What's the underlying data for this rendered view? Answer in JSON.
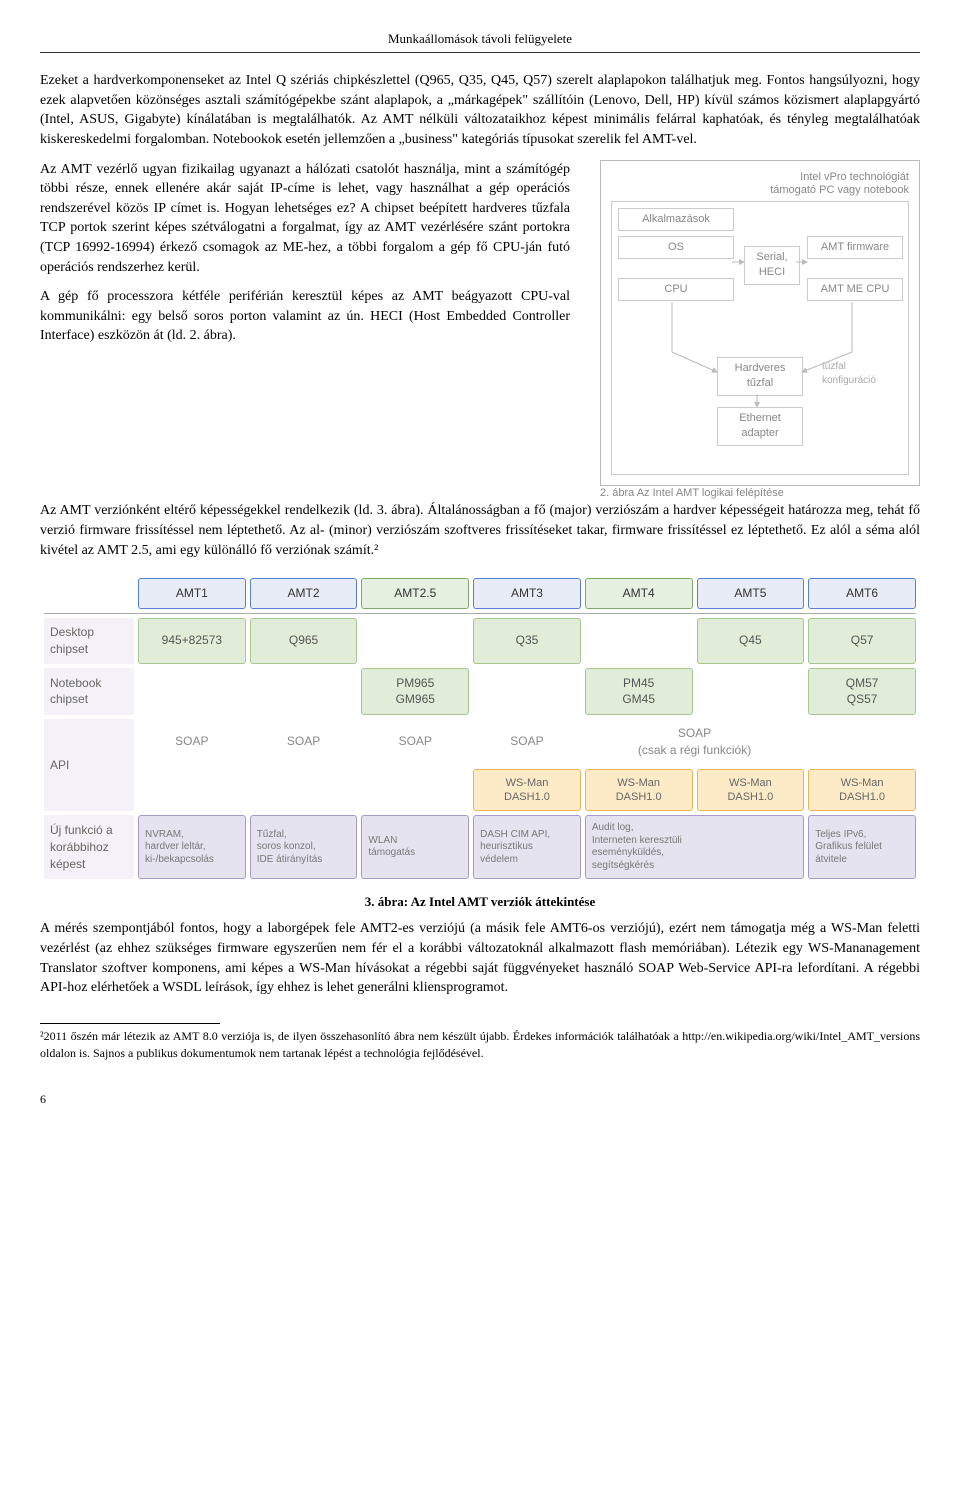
{
  "header": "Munkaállomások távoli felügyelete",
  "para1": "Ezeket a hardverkomponenseket az Intel Q szériás chipkészlettel (Q965, Q35, Q45, Q57) szerelt alaplapokon találhatjuk meg. Fontos hangsúlyozni, hogy ezek alapvetően közönséges asztali számítógépekbe szánt alaplapok, a „márkagépek\" szállítóin (Lenovo, Dell, HP) kívül számos közismert alaplapgyártó (Intel, ASUS, Gigabyte) kínálatában is megtalálhatók. Az AMT nélküli változataikhoz képest minimális felárral kaphatóak, és tényleg megtalálhatóak kiskereskedelmi forgalomban. Notebookok esetén jellemzően a „business\" kategóriás típusokat szerelik fel AMT-vel.",
  "para2a": "Az AMT vezérlő ugyan fizikailag ugyanazt a hálózati csatolót használja, mint a számítógép többi része, ennek ellenére akár saját IP-címe is lehet, vagy használhat a gép operációs rendszerével közös IP címet is. Hogyan lehetséges ez? A chipset beépített hardveres tűzfala TCP portok szerint képes szétválogatni a forgalmat, így az AMT vezérlésére szánt portokra (TCP 16992-16994) érkező csomagok az ME-hez, a többi forgalom a gép fő CPU-ján futó operációs rendszerhez kerül.",
  "para2b": "A gép fő processzora kétféle periférián keresztül képes az AMT beágyazott CPU-val kommunikálni: egy belső soros porton valamint az ún. HECI (Host Embedded Controller Interface) eszközön át (ld. 2. ábra).",
  "para3": "Az AMT verziónként eltérő képességekkel rendelkezik (ld. 3. ábra). Általánosságban a fő (major) verziószám a hardver képességeit határozza meg, tehát fő verzió firmware frissítéssel nem léptethető. Az al- (minor) verziószám szoftveres frissítéseket takar, firmware frissítéssel ez léptethető. Ez alól a séma alól kivétel az AMT 2.5, ami egy különálló fő verziónak számít.²",
  "para4": "A mérés szempontjából fontos, hogy a laborgépek fele AMT2-es verziójú (a másik fele AMT6-os verziójú), ezért nem támogatja még a WS-Man feletti vezérlést (az ehhez szükséges firmware egyszerűen nem fér el a korábbi változatoknál alkalmazott flash memóriában). Létezik egy WS-Mananagement Translator szoftver komponens, ami képes a WS-Man hívásokat a régebbi saját függvényeket használó SOAP Web-Service API-ra lefordítani. A régebbi API-hoz elérhetőek a WSDL leírások, így ehhez is lehet generálni kliensprogramot.",
  "footnote": "²2011 őszén már létezik az AMT 8.0 verziója is, de ilyen összehasonlító ábra nem készült újabb. Érdekes információk találhatóak a http://en.wikipedia.org/wiki/Intel_AMT_versions oldalon is. Sajnos a publikus dokumentumok nem tartanak lépést a technológia fejlődésével.",
  "page_num": "6",
  "fig2": {
    "topnote1": "Intel vPro technológiát",
    "topnote2": "támogató PC vagy notebook",
    "boxes": {
      "alk": "Alkalmazások",
      "os": "OS",
      "cpu": "CPU",
      "amtfw": "AMT firmware",
      "amtcpu": "AMT ME CPU",
      "serial": "Serial,\nHECI",
      "hwfw": "Hardveres\ntűzfal",
      "eth": "Ethernet\nadapter",
      "tzcfg": "tűzfal\nkonfiguráció"
    },
    "caption": "2. ábra Az Intel AMT logikai felépítése"
  },
  "fig3": {
    "colors": {
      "hdr_blue_bg": "#e8ecf6",
      "hdr_blue_bd": "#5a7fd6",
      "hdr_green_bg": "#e6f0e0",
      "hdr_green_bd": "#7fa96a",
      "chip_bg": "#e1edd8",
      "chip_bd": "#a7c78f",
      "wsman_bg": "#fdebc8",
      "wsman_bd": "#e8b755",
      "feat_bg": "#e6e3f0",
      "feat_bd": "#a79bc9",
      "rowlabel_bg": "#f4f2f8"
    },
    "row_labels": {
      "desktop": "Desktop\nchipset",
      "notebook": "Notebook\nchipset",
      "api": "API",
      "new": "Új funkció a\nkorábbihoz\nképest"
    },
    "headers": [
      {
        "label": "AMT1",
        "color": "blue"
      },
      {
        "label": "AMT2",
        "color": "blue"
      },
      {
        "label": "AMT2.5",
        "color": "green"
      },
      {
        "label": "AMT3",
        "color": "blue"
      },
      {
        "label": "AMT4",
        "color": "green"
      },
      {
        "label": "AMT5",
        "color": "blue"
      },
      {
        "label": "AMT6",
        "color": "blue"
      }
    ],
    "desktop": [
      "945+82573",
      "Q965",
      "",
      "Q35",
      "",
      "Q45",
      "Q57"
    ],
    "notebook": [
      "",
      "",
      "PM965\nGM965",
      "",
      "PM45\nGM45",
      "",
      "QM57\nQS57"
    ],
    "api_soap": [
      "SOAP",
      "SOAP",
      "SOAP",
      "SOAP"
    ],
    "api_soap_merge": "SOAP\n(csak a régi funkciók)",
    "api_wsman": "WS-Man\nDASH1.0",
    "features": [
      "NVRAM,\nhardver leltár,\nki-/bekapcsolás",
      "Tűzfal,\nsoros konzol,\nIDE átirányítás",
      "WLAN\ntámogatás",
      "DASH CIM API,\nheurisztikus\nvédelem",
      "Audit log,\nInterneten keresztüli\neseményküldés,\nsegítségkérés",
      "Teljes IPv6,\nGrafikus felület\nátvitele"
    ],
    "caption": "3. ábra: Az Intel AMT verziók áttekintése"
  }
}
